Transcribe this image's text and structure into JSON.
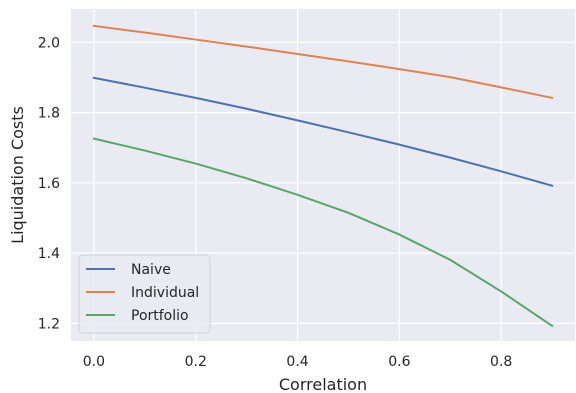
{
  "chart_data": {
    "type": "line",
    "title": "",
    "xlabel": "Correlation",
    "ylabel": "Liquidation Costs",
    "xlim": [
      -0.045,
      0.945
    ],
    "ylim": [
      1.15,
      2.095
    ],
    "xticks": [
      0.0,
      0.2,
      0.4,
      0.6,
      0.8
    ],
    "xtick_labels": [
      "0.0",
      "0.2",
      "0.4",
      "0.6",
      "0.8"
    ],
    "yticks": [
      1.2,
      1.4,
      1.6,
      1.8,
      2.0
    ],
    "ytick_labels": [
      "1.2",
      "1.4",
      "1.6",
      "1.8",
      "2.0"
    ],
    "grid": true,
    "legend_position": "lower-left",
    "x": [
      0.0,
      0.1,
      0.2,
      0.3,
      0.4,
      0.5,
      0.6,
      0.7,
      0.8,
      0.9
    ],
    "series": [
      {
        "name": "Naive",
        "color": "#4c72b0",
        "values": [
          1.899,
          1.871,
          1.842,
          1.811,
          1.778,
          1.744,
          1.709,
          1.672,
          1.633,
          1.592
        ]
      },
      {
        "name": "Individual",
        "color": "#dd8452",
        "values": [
          2.047,
          2.028,
          2.008,
          1.988,
          1.967,
          1.946,
          1.924,
          1.901,
          1.872,
          1.842
        ]
      },
      {
        "name": "Portfolio",
        "color": "#55a868",
        "values": [
          1.726,
          1.692,
          1.655,
          1.613,
          1.566,
          1.515,
          1.453,
          1.381,
          1.291,
          1.193
        ]
      }
    ]
  }
}
